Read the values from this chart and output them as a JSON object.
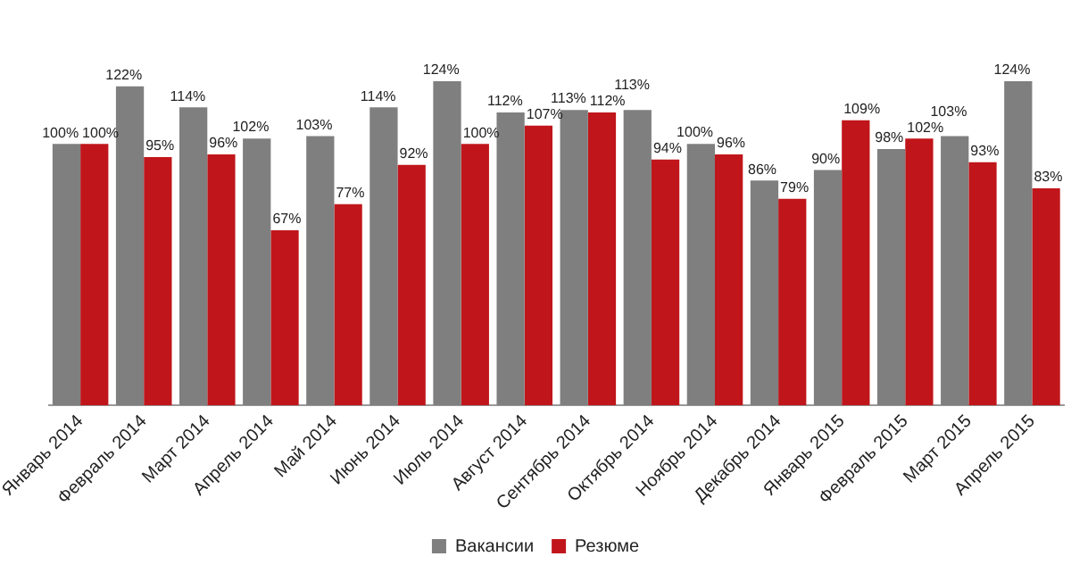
{
  "chart_data": {
    "type": "bar",
    "categories": [
      "Январь 2014",
      "Февраль 2014",
      "Март 2014",
      "Апрель 2014",
      "Май 2014",
      "Июнь 2014",
      "Июль 2014",
      "Август 2014",
      "Сентябрь 2014",
      "Октябрь 2014",
      "Ноябрь 2014",
      "Декабрь 2014",
      "Январь 2015",
      "Февраль 2015",
      "Март 2015",
      "Апрель 2015"
    ],
    "series": [
      {
        "name": "Вакансии",
        "color": "#7f7f7f",
        "values": [
          100,
          122,
          114,
          102,
          103,
          114,
          124,
          112,
          113,
          113,
          100,
          86,
          90,
          98,
          103,
          124
        ],
        "value_labels": [
          "100%",
          "122%",
          "114%",
          "102%",
          "103%",
          "114%",
          "124%",
          "112%",
          "113%",
          "113%",
          "100%",
          "86%",
          "90%",
          "98%",
          "103%",
          "124%"
        ]
      },
      {
        "name": "Резюме",
        "color": "#c0161b",
        "values": [
          100,
          95,
          96,
          67,
          77,
          92,
          100,
          107,
          112,
          94,
          96,
          79,
          109,
          102,
          93,
          83
        ],
        "value_labels": [
          "100%",
          "95%",
          "96%",
          "67%",
          "77%",
          "92%",
          "100%",
          "107%",
          "112%",
          "94%",
          "96%",
          "79%",
          "109%",
          "102%",
          "93%",
          "83%"
        ]
      }
    ],
    "legend": "bottom",
    "grid": false
  }
}
